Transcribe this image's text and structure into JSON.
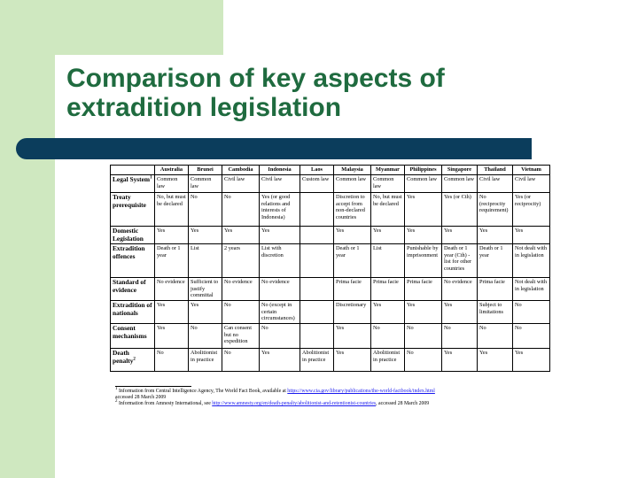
{
  "title": {
    "line1": "Comparison of key aspects of",
    "line2": "extradition legislation"
  },
  "table": {
    "columns": [
      "",
      "Australia",
      "Brunei",
      "Cambodia",
      "Indonesia",
      "Laos",
      "Malaysia",
      "Myanmar",
      "Philippines",
      "Singapore",
      "Thailand",
      "Vietnam"
    ],
    "rows": [
      {
        "label": "Legal System",
        "sup": "1",
        "cells": [
          "Common law",
          "Common law",
          "Civil law",
          "Civil law",
          "Custom law",
          "Common law",
          "Common law",
          "Common law",
          "Common law",
          "Civil law",
          "Civil law"
        ]
      },
      {
        "label": "Treaty prerequisite",
        "sup": "",
        "cells": [
          "No, but must be declared",
          "No",
          "No",
          "Yes (or good relations and interests of Indonesia)",
          "",
          "Discretion to accept from non-declared countries",
          "No, but must be declared",
          "Yes",
          "Yes (or Cth)",
          "No (reciprocity requirement)",
          "Yes (or reciprocity)"
        ]
      },
      {
        "label": "Domestic Legislation",
        "sup": "",
        "cells": [
          "Yes",
          "Yes",
          "Yes",
          "Yes",
          "",
          "Yes",
          "Yes",
          "Yes",
          "Yes",
          "Yes",
          "Yes"
        ]
      },
      {
        "label": "Extradition offences",
        "sup": "",
        "cells": [
          "Death or 1 year",
          "List",
          "2 years",
          "List with discretion",
          "",
          "Death or 1 year",
          "List",
          "Punishable by imprisonment",
          "Death or 1 year (Cth) - list for other countries",
          "Death or 1 year",
          "Not dealt with in legislation"
        ]
      },
      {
        "label": "Standard of evidence",
        "sup": "",
        "cells": [
          "No evidence",
          "Sufficient to justify committal",
          "No evidence",
          "No evidence",
          "",
          "Prima facie",
          "Prima facie",
          "Prima facie",
          "No evidence",
          "Prima facie",
          "Not dealt with in legislation"
        ]
      },
      {
        "label": "Extradition of nationals",
        "sup": "",
        "cells": [
          "Yes",
          "Yes",
          "No",
          "No (except in certain circumstances)",
          "",
          "Discretionary",
          "Yes",
          "Yes",
          "Yes",
          "Subject to limitations",
          "No"
        ]
      },
      {
        "label": "Consent mechanisms",
        "sup": "",
        "cells": [
          "Yes",
          "No",
          "Can consent but no expedition",
          "No",
          "",
          "Yes",
          "No",
          "No",
          "No",
          "No",
          "No"
        ]
      },
      {
        "label": "Death penalty",
        "sup": "2",
        "cells": [
          "No",
          "Abolitionist in practice",
          "No",
          "Yes",
          "Abolitionist in practice",
          "Yes",
          "Abolitionist in practice",
          "No",
          "Yes",
          "Yes",
          "Yes"
        ]
      }
    ]
  },
  "footnotes": {
    "fn1": {
      "number": "1",
      "text": "Information from Central Intelligence Agency, The World Fact Book, available at ",
      "link": "https://www.cia.gov/library/publications/the-world-factbook/index.html",
      "after": "accessed 28 March 2009"
    },
    "fn2": {
      "number": "2",
      "text": "Information from Amnesty International, see ",
      "link": "http://www.amnesty.org/en/death-penalty/abolitionist-and-retentionist-countries",
      "after": ", accessed 28 March 2009"
    }
  },
  "colors": {
    "title": "#1f6b3f",
    "side_panel": "#cfe8c0",
    "bar": "#0b3d5c"
  }
}
